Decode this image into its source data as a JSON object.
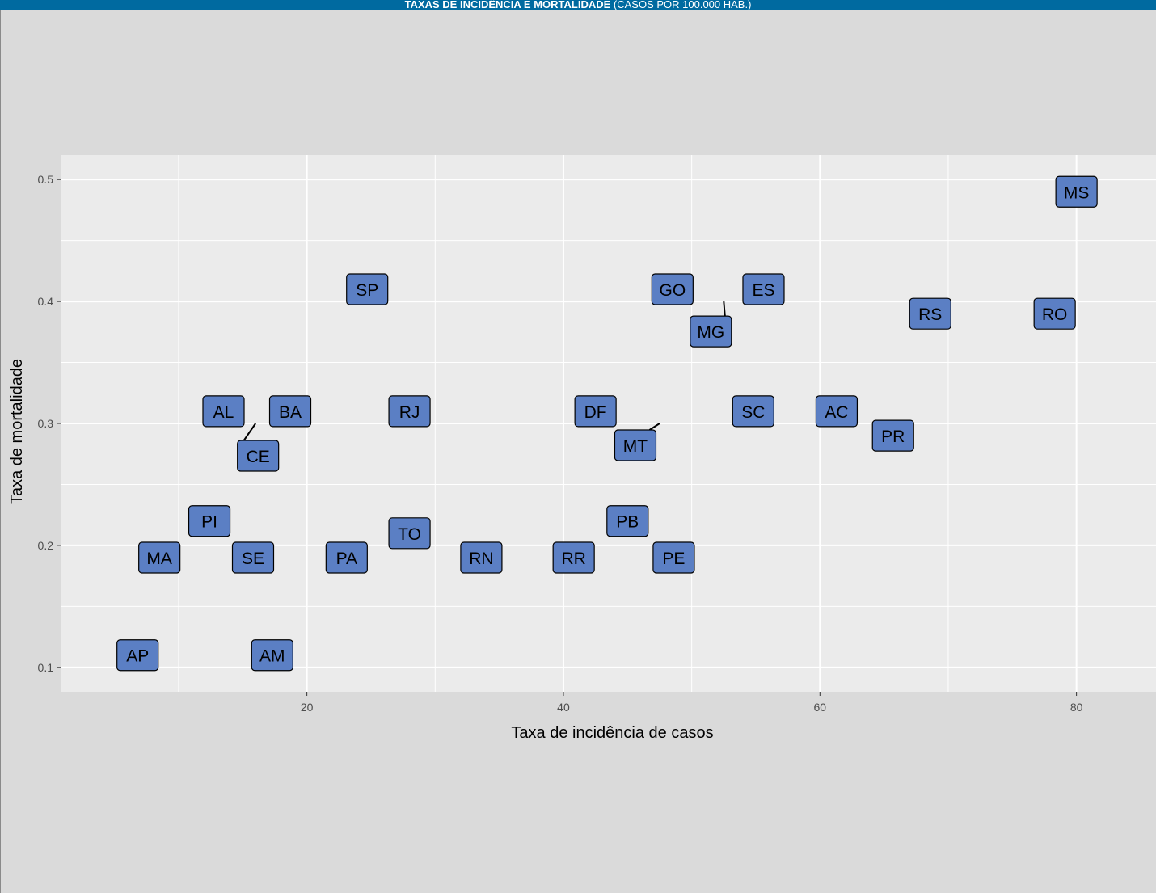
{
  "header": {
    "title_bold": "TAXAS DE INCIDÊNCIA E MORTALIDADE",
    "title_rest": " (CASOS POR 100.000 HAB.)"
  },
  "colors": {
    "header_bg": "#006aa0",
    "page_bg": "#dadada",
    "panel_bg": "#ebebeb",
    "grid": "#ffffff",
    "label_fill": "#5b7fc4",
    "label_border": "#000000"
  },
  "chart_data": {
    "type": "scatter",
    "title": "TAXAS DE INCIDÊNCIA E MORTALIDADE (CASOS POR 100.000 HAB.)",
    "xlabel": "Taxa de incidência de casos",
    "ylabel": "Taxa de mortalidade",
    "xlim": [
      0.8,
      86.2
    ],
    "ylim": [
      0.08,
      0.52
    ],
    "xticks": [
      20,
      40,
      60,
      80
    ],
    "yticks": [
      0.1,
      0.2,
      0.3,
      0.4,
      0.5
    ],
    "grid": true,
    "legend": "none",
    "points": [
      {
        "label": "MS",
        "x": 80,
        "y": 0.49
      },
      {
        "label": "SP",
        "x": 24.7,
        "y": 0.41
      },
      {
        "label": "GO",
        "x": 48.5,
        "y": 0.41
      },
      {
        "label": "ES",
        "x": 55.6,
        "y": 0.41
      },
      {
        "label": "MG",
        "x": 52.5,
        "y": 0.39
      },
      {
        "label": "RS",
        "x": 68.6,
        "y": 0.39
      },
      {
        "label": "RO",
        "x": 78.3,
        "y": 0.39
      },
      {
        "label": "AL",
        "x": 13.5,
        "y": 0.31
      },
      {
        "label": "BA",
        "x": 18.7,
        "y": 0.31
      },
      {
        "label": "RJ",
        "x": 28.0,
        "y": 0.31
      },
      {
        "label": "DF",
        "x": 42.5,
        "y": 0.31
      },
      {
        "label": "SC",
        "x": 54.8,
        "y": 0.31
      },
      {
        "label": "AC",
        "x": 61.3,
        "y": 0.31
      },
      {
        "label": "CE",
        "x": 16.0,
        "y": 0.28
      },
      {
        "label": "MT",
        "x": 47.5,
        "y": 0.3
      },
      {
        "label": "PR",
        "x": 65.7,
        "y": 0.29
      },
      {
        "label": "PI",
        "x": 12.4,
        "y": 0.22
      },
      {
        "label": "PB",
        "x": 45.0,
        "y": 0.22
      },
      {
        "label": "TO",
        "x": 28.0,
        "y": 0.21
      },
      {
        "label": "MA",
        "x": 8.5,
        "y": 0.19
      },
      {
        "label": "SE",
        "x": 15.8,
        "y": 0.19
      },
      {
        "label": "PA",
        "x": 23.1,
        "y": 0.19
      },
      {
        "label": "RN",
        "x": 33.6,
        "y": 0.19
      },
      {
        "label": "RR",
        "x": 40.8,
        "y": 0.19
      },
      {
        "label": "PE",
        "x": 48.6,
        "y": 0.19
      },
      {
        "label": "AP",
        "x": 6.8,
        "y": 0.11
      },
      {
        "label": "AM",
        "x": 17.3,
        "y": 0.11
      }
    ]
  }
}
